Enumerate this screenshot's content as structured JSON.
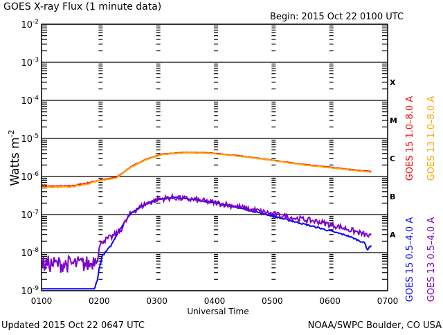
{
  "chart_data": {
    "type": "line",
    "title": "GOES X-ray Flux (1 minute data)",
    "subtitle": "Begin: 2015 Oct 22 0100 UTC",
    "xlabel": "Universal Time",
    "ylabel": "Watts m",
    "ylabel_exponent": "-2",
    "xlim_hours": [
      1,
      7
    ],
    "ylim": [
      1e-09,
      0.01
    ],
    "yscale": "log",
    "x_ticks": [
      "0100",
      "0200",
      "0300",
      "0400",
      "0500",
      "0600",
      "0700"
    ],
    "y_ticks": [
      {
        "base": "10",
        "exp": "-2"
      },
      {
        "base": "10",
        "exp": "-3"
      },
      {
        "base": "10",
        "exp": "-4"
      },
      {
        "base": "10",
        "exp": "-5"
      },
      {
        "base": "10",
        "exp": "-6"
      },
      {
        "base": "10",
        "exp": "-7"
      },
      {
        "base": "10",
        "exp": "-8"
      },
      {
        "base": "10",
        "exp": "-9"
      }
    ],
    "flare_classes": [
      {
        "label": "X",
        "value": 0.0003
      },
      {
        "label": "M",
        "value": 3e-05
      },
      {
        "label": "C",
        "value": 3e-06
      },
      {
        "label": "B",
        "value": 3e-07
      },
      {
        "label": "A",
        "value": 3e-08
      }
    ],
    "series": [
      {
        "name": "GOES 15 1.0-8.0 A",
        "color": "#ff0000",
        "noise": 0.01,
        "points": [
          [
            1.0,
            5.5e-07
          ],
          [
            1.5,
            5.6e-07
          ],
          [
            1.75,
            6.5e-07
          ],
          [
            2.0,
            8e-07
          ],
          [
            2.3,
            9.5e-07
          ],
          [
            2.55,
            1.8e-06
          ],
          [
            2.8,
            2.8e-06
          ],
          [
            3.1,
            3.9e-06
          ],
          [
            3.5,
            4.3e-06
          ],
          [
            3.9,
            4.2e-06
          ],
          [
            4.5,
            3.4e-06
          ],
          [
            5.0,
            2.7e-06
          ],
          [
            5.5,
            2.1e-06
          ],
          [
            6.0,
            1.75e-06
          ],
          [
            6.4,
            1.5e-06
          ],
          [
            6.72,
            1.35e-06
          ]
        ]
      },
      {
        "name": "GOES 13 1.0-8.0 A",
        "color": "#ffa500",
        "noise": 0.01,
        "points": [
          [
            1.0,
            5.2e-07
          ],
          [
            1.5,
            5.3e-07
          ],
          [
            1.75,
            6.2e-07
          ],
          [
            2.0,
            7.7e-07
          ],
          [
            2.3,
            9.2e-07
          ],
          [
            2.55,
            1.75e-06
          ],
          [
            2.8,
            2.7e-06
          ],
          [
            3.1,
            3.8e-06
          ],
          [
            3.5,
            4.2e-06
          ],
          [
            3.9,
            4.1e-06
          ],
          [
            4.5,
            3.3e-06
          ],
          [
            5.0,
            2.65e-06
          ],
          [
            5.5,
            2.05e-06
          ],
          [
            6.0,
            1.7e-06
          ],
          [
            6.4,
            1.45e-06
          ],
          [
            6.72,
            1.3e-06
          ]
        ]
      },
      {
        "name": "GOES 15 0.5-4.0 A",
        "color": "#0000ff",
        "noise": 0.04,
        "points": [
          [
            1.0,
            8e-10
          ],
          [
            1.9,
            8e-10
          ],
          [
            1.92,
            1e-09
          ],
          [
            2.05,
            8e-09
          ],
          [
            2.2,
            1.5e-08
          ],
          [
            2.35,
            4e-08
          ],
          [
            2.55,
            1.1e-07
          ],
          [
            2.8,
            1.9e-07
          ],
          [
            3.05,
            2.6e-07
          ],
          [
            3.3,
            2.8e-07
          ],
          [
            3.7,
            2.4e-07
          ],
          [
            4.2,
            1.8e-07
          ],
          [
            4.8,
            1.1e-07
          ],
          [
            5.3,
            7e-08
          ],
          [
            5.8,
            4.5e-08
          ],
          [
            6.3,
            2.8e-08
          ],
          [
            6.6,
            1.8e-08
          ],
          [
            6.65,
            1.2e-08
          ],
          [
            6.72,
            1.6e-08
          ]
        ]
      },
      {
        "name": "GOES 13 0.5-4.0 A",
        "color": "#7b00c8",
        "noise": 0.15,
        "points": [
          [
            1.0,
            5e-09
          ],
          [
            1.3,
            5e-09
          ],
          [
            1.6,
            5e-09
          ],
          [
            1.85,
            5e-09
          ],
          [
            1.95,
            8e-09
          ],
          [
            2.05,
            2e-08
          ],
          [
            2.2,
            2.5e-08
          ],
          [
            2.35,
            3.5e-08
          ],
          [
            2.55,
            1.1e-07
          ],
          [
            2.8,
            1.9e-07
          ],
          [
            3.05,
            2.6e-07
          ],
          [
            3.3,
            2.8e-07
          ],
          [
            3.7,
            2.4e-07
          ],
          [
            4.2,
            1.85e-07
          ],
          [
            4.8,
            1.2e-07
          ],
          [
            5.3,
            8.5e-08
          ],
          [
            5.8,
            6.5e-08
          ],
          [
            6.3,
            4.2e-08
          ],
          [
            6.72,
            2.6e-08
          ]
        ]
      }
    ]
  },
  "footer": {
    "updated": "Updated 2015 Oct 22 0647 UTC",
    "credit": "NOAA/SWPC Boulder, CO USA"
  }
}
